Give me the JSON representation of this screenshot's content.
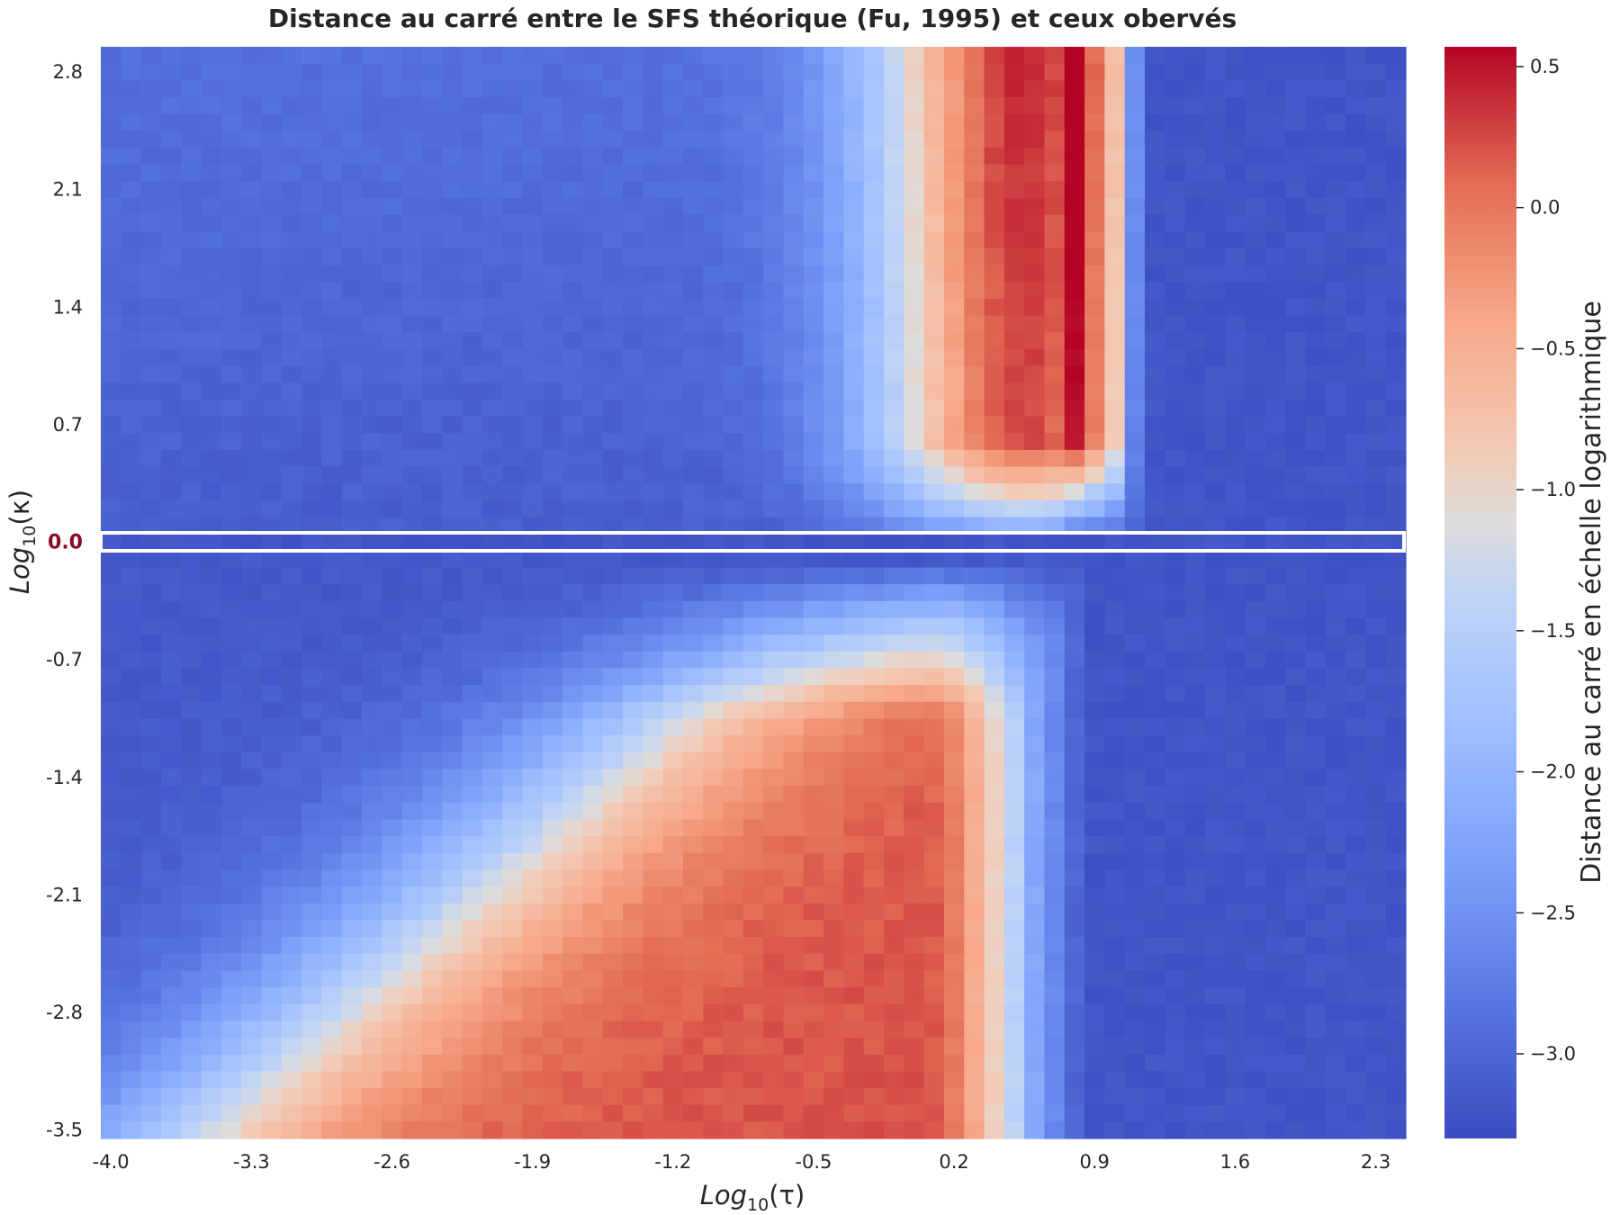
{
  "chart_data": {
    "type": "heatmap",
    "title": "Distance au carré entre le SFS théorique (Fu, 1995) et ceux obervés",
    "xlabel": {
      "base": "Log",
      "sub": "10",
      "var": "(τ)"
    },
    "ylabel": {
      "base": "Log",
      "sub": "10",
      "var": "(κ)"
    },
    "x_range": [
      -4.0,
      2.5
    ],
    "y_range": [
      -3.5,
      3.0
    ],
    "x_ticks": [
      "-4.0",
      "-3.3",
      "-2.6",
      "-1.9",
      "-1.2",
      "-0.5",
      "0.2",
      "0.9",
      "1.6",
      "2.3"
    ],
    "x_tick_values": [
      -4.0,
      -3.3,
      -2.6,
      -1.9,
      -1.2,
      -0.5,
      0.2,
      0.9,
      1.6,
      2.3
    ],
    "y_ticks": [
      "2.8",
      "2.1",
      "1.4",
      "0.7",
      "0.0",
      "-0.7",
      "-1.4",
      "-2.1",
      "-2.8",
      "-3.5"
    ],
    "y_tick_values": [
      2.8,
      2.1,
      1.4,
      0.7,
      0.0,
      -0.7,
      -1.4,
      -2.1,
      -2.8,
      -3.5
    ],
    "highlighted_y_tick": "0.0",
    "grid_step": 0.1,
    "colormap": "coolwarm",
    "colorbar": {
      "label": "Distance au carré en échelle logarithmique",
      "range": [
        -3.3,
        0.57
      ],
      "ticks": [
        "0.5",
        "0.0",
        "−0.5",
        "−1.0",
        "−1.5",
        "−2.0",
        "−2.5",
        "−3.0"
      ],
      "tick_values": [
        0.5,
        0.0,
        -0.5,
        -1.0,
        -1.5,
        -2.0,
        -2.5,
        -3.0
      ]
    },
    "regions": {
      "upper_kappa_positive": {
        "description_values": "peak near log10(tau)=0.8, log10(kappa)=2.8 with value about 0.55; sharp drop to about -3.2 for log10(tau) above 1.2",
        "peak": {
          "x": 0.8,
          "y": 2.8,
          "value": 0.55
        }
      },
      "lower_kappa_negative": {
        "peak": {
          "x": -1.7,
          "y": -3.5,
          "value": 0.2
        },
        "cutoff_tau": 0.9,
        "background_value": -3.2
      }
    },
    "highlight_row": {
      "y": 0.0,
      "value": -3.2
    }
  }
}
